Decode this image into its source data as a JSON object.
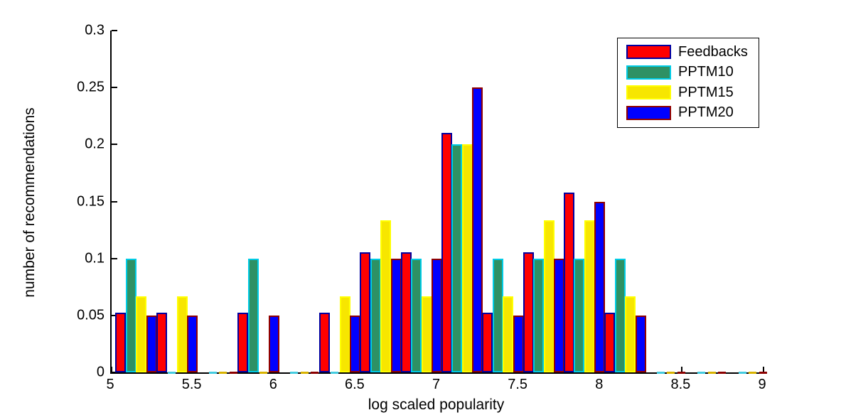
{
  "figure": {
    "background": "#ffffff",
    "xlabel": "log scaled popularity",
    "ylabel": "number of recommendations"
  },
  "axes": {
    "x_tick_labels": [
      "5",
      "5.5",
      "6",
      "6.5",
      "7",
      "7.5",
      "8",
      "8.5",
      "9"
    ],
    "y_tick_labels": [
      "0",
      "0.05",
      "0.1",
      "0.15",
      "0.2",
      "0.25",
      "0.3"
    ]
  },
  "legend": {
    "position": "top-right",
    "entries": [
      "Feedbacks",
      "PPTM10",
      "PPTM15",
      "PPTM20"
    ]
  },
  "chart_data": {
    "type": "bar",
    "title": "",
    "xlabel": "log scaled popularity",
    "ylabel": "number of recommendations",
    "xlim": [
      5,
      9
    ],
    "ylim": [
      0,
      0.3
    ],
    "xticks": [
      5,
      5.5,
      6,
      6.5,
      7,
      7.5,
      8,
      8.5,
      9
    ],
    "yticks": [
      0,
      0.05,
      0.1,
      0.15,
      0.2,
      0.25,
      0.3
    ],
    "grid": false,
    "legend_position": "top-right",
    "categories": [
      5.15,
      5.4,
      5.65,
      5.9,
      6.15,
      6.4,
      6.65,
      6.9,
      7.15,
      7.4,
      7.65,
      7.9,
      8.15,
      8.4,
      8.65,
      8.9
    ],
    "series": [
      {
        "name": "Feedbacks",
        "fill": "#FF0000",
        "edge": "#0000A0",
        "zero_mark": null,
        "values": [
          0.0526,
          0.0526,
          0,
          0.0526,
          0,
          0.0526,
          0.1053,
          0.1053,
          0.2105,
          0.0526,
          0.1053,
          0.1579,
          0.0526,
          0,
          0,
          0
        ]
      },
      {
        "name": "PPTM10",
        "fill": "#2E9164",
        "edge": "#00CCE6",
        "zero_mark": "#44CCE0",
        "values": [
          0.1,
          0,
          0,
          0.1,
          0,
          0,
          0.1,
          0.1,
          0.2,
          0.1,
          0.1,
          0.1,
          0.1,
          0,
          0,
          0
        ]
      },
      {
        "name": "PPTM15",
        "fill": "#F7E600",
        "edge": "#FFFF00",
        "zero_mark": "#D9B300",
        "values": [
          0.0667,
          0.0667,
          0,
          0,
          0,
          0.0667,
          0.1333,
          0.0667,
          0.2,
          0.0667,
          0.1333,
          0.1333,
          0.0667,
          0,
          0,
          0
        ]
      },
      {
        "name": "PPTM20",
        "fill": "#0000FF",
        "edge": "#900000",
        "zero_mark": "#8B0000",
        "values": [
          0.05,
          0.05,
          0,
          0.05,
          0,
          0.05,
          0.1,
          0.1,
          0.25,
          0.05,
          0.1,
          0.15,
          0.05,
          0,
          0,
          0
        ]
      }
    ]
  }
}
